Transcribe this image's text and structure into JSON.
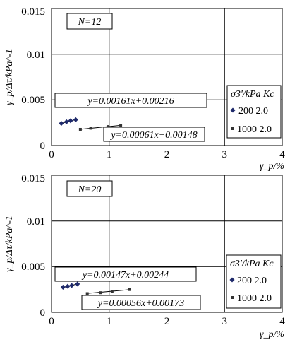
{
  "chart_data": [
    {
      "type": "scatter",
      "panel_label": "N=12",
      "ylabel": "γ_p/Δτ/kPa^-1",
      "xlabel": "γ_p/%",
      "xlim": [
        0,
        4
      ],
      "ylim": [
        0,
        0.015
      ],
      "xticks": [
        "0",
        "1",
        "2",
        "3",
        "4"
      ],
      "yticks": [
        "0",
        "0.005",
        "0.01",
        "0.015"
      ],
      "grid": true,
      "legend_header": "σ3'/kPa  Kc",
      "legend_position": "right",
      "series": [
        {
          "name": "200  2.0",
          "marker": "diamond",
          "color": "#1f2a6b",
          "x": [
            0.17,
            0.26,
            0.33,
            0.42
          ],
          "y": [
            0.00243,
            0.0026,
            0.00272,
            0.00283
          ],
          "fit": {
            "label": "y=0.00161x+0.00216",
            "slope": 0.00161,
            "intercept": 0.00216,
            "x_range": [
              0.17,
              0.42
            ]
          }
        },
        {
          "name": "1000 2.0",
          "marker": "square",
          "color": "#333333",
          "x": [
            0.5,
            0.68,
            0.98,
            1.2
          ],
          "y": [
            0.00178,
            0.0019,
            0.00208,
            0.00222
          ],
          "fit": {
            "label": "y=0.00061x+0.00148",
            "slope": 0.00061,
            "intercept": 0.00148,
            "x_range": [
              0.5,
              1.2
            ]
          }
        }
      ]
    },
    {
      "type": "scatter",
      "panel_label": "N=20",
      "ylabel": "γ_p/Δτ/kPa^-1",
      "xlabel": "γ_p/%",
      "xlim": [
        0,
        4
      ],
      "ylim": [
        0,
        0.015
      ],
      "xticks": [
        "0",
        "1",
        "2",
        "3",
        "4"
      ],
      "yticks": [
        "0",
        "0.005",
        "0.01",
        "0.015"
      ],
      "grid": true,
      "legend_header": "σ3'/kPa  Kc",
      "legend_position": "right",
      "series": [
        {
          "name": "200   2.0",
          "marker": "diamond",
          "color": "#1f2a6b",
          "x": [
            0.2,
            0.28,
            0.35,
            0.45
          ],
          "y": [
            0.00275,
            0.00285,
            0.00294,
            0.0031
          ],
          "fit": {
            "label": "y=0.00147x+0.00244",
            "slope": 0.00147,
            "intercept": 0.00244,
            "x_range": [
              0.2,
              0.45
            ]
          }
        },
        {
          "name": "1000 2.0",
          "marker": "square",
          "color": "#333333",
          "x": [
            0.62,
            0.85,
            1.05,
            1.35
          ],
          "y": [
            0.00205,
            0.00215,
            0.0023,
            0.0025
          ],
          "fit": {
            "label": "y=0.00056x+0.00173",
            "slope": 0.00056,
            "intercept": 0.00173,
            "x_range": [
              0.62,
              1.35
            ]
          }
        }
      ]
    }
  ]
}
